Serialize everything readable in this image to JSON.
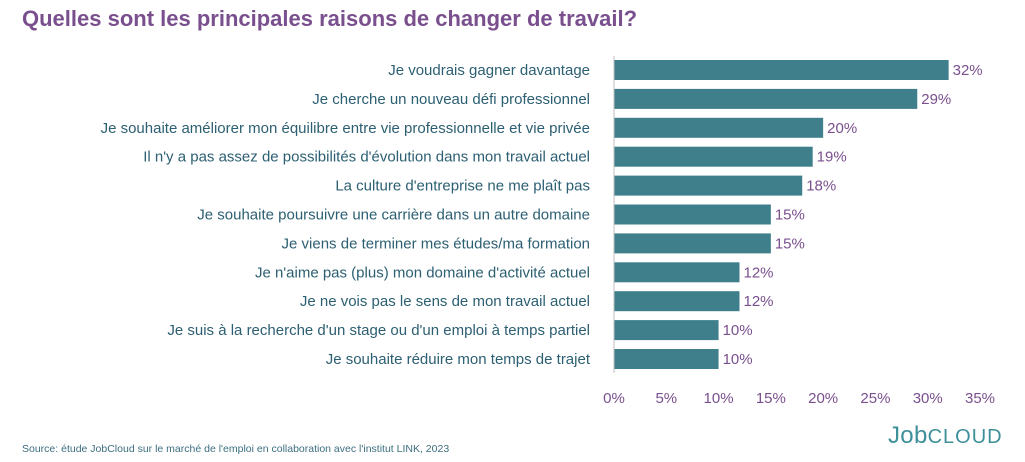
{
  "title": "Quelles sont les principales raisons de changer de travail?",
  "source": "Source: étude JobCloud sur le marché de l'emploi en collaboration avec l'institut LINK, 2023",
  "logo": {
    "part1": "Job",
    "part2": "CLOUD"
  },
  "colors": {
    "bar": "#3f7f8c",
    "label": "#2c5f72",
    "value": "#7a4f8e",
    "axis": "#7a4f8e"
  },
  "chart_data": {
    "type": "bar",
    "orientation": "horizontal",
    "categories": [
      "Je voudrais gagner davantage",
      "Je cherche un nouveau défi professionnel",
      "Je souhaite améliorer mon équilibre entre vie professionnelle et vie privée",
      "Il n'y a pas assez de possibilités d'évolution dans mon travail actuel",
      "La culture d'entreprise ne me plaît pas",
      "Je souhaite poursuivre une carrière dans un autre domaine",
      "Je viens de terminer mes études/ma formation",
      "Je n'aime pas (plus) mon domaine d'activité actuel",
      "Je ne vois pas le sens de mon travail actuel",
      "Je suis à la recherche d'un stage ou d'un emploi à temps partiel",
      "Je souhaite réduire mon temps de trajet"
    ],
    "values": [
      32,
      29,
      20,
      19,
      18,
      15,
      15,
      12,
      12,
      10,
      10
    ],
    "value_labels": [
      "32%",
      "29%",
      "20%",
      "19%",
      "18%",
      "15%",
      "15%",
      "12%",
      "12%",
      "10%",
      "10%"
    ],
    "xlim": [
      0,
      35
    ],
    "xticks": [
      "0%",
      "5%",
      "10%",
      "15%",
      "20%",
      "25%",
      "30%",
      "35%"
    ],
    "grid": false
  }
}
